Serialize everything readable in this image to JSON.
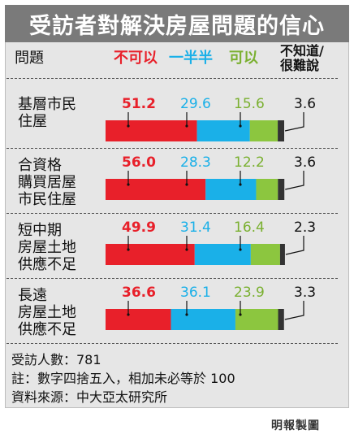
{
  "title": "受訪者對解決房屋問題的信心",
  "header": {
    "question": "問題",
    "cat_no": "不可以",
    "cat_half": "一半半",
    "cat_yes": "可以",
    "cat_na_line1": "不知道/",
    "cat_na_line2": "很難說"
  },
  "colors": {
    "no": "#e8202a",
    "half": "#1ab0e8",
    "yes": "#8cc63f",
    "na": "#333333",
    "no_text": "#e8202a",
    "half_text": "#1ab0e8",
    "yes_text": "#7ab030"
  },
  "chart_data": {
    "type": "bar",
    "stacked": true,
    "orientation": "horizontal",
    "title": "受訪者對解決房屋問題的信心",
    "categories": [
      "基層市民住屋",
      "合資格購買居屋市民住屋",
      "短中期房屋土地供應不足",
      "長遠房屋土地供應不足"
    ],
    "category_lines": [
      [
        "基層市民",
        "住屋"
      ],
      [
        "合資格",
        "購買居屋",
        "市民住屋"
      ],
      [
        "短中期",
        "房屋土地",
        "供應不足"
      ],
      [
        "長遠",
        "房屋土地",
        "供應不足"
      ]
    ],
    "series": [
      {
        "name": "不可以",
        "values": [
          51.2,
          56.0,
          49.9,
          36.6
        ]
      },
      {
        "name": "一半半",
        "values": [
          29.6,
          28.3,
          31.4,
          36.1
        ]
      },
      {
        "name": "可以",
        "values": [
          15.6,
          12.2,
          16.4,
          23.9
        ]
      },
      {
        "name": "不知道/很難說",
        "values": [
          3.6,
          3.6,
          2.3,
          3.3
        ]
      }
    ],
    "value_labels": [
      [
        "51.2",
        "29.6",
        "15.6",
        "3.6"
      ],
      [
        "56.0",
        "28.3",
        "12.2",
        "3.6"
      ],
      [
        "49.9",
        "31.4",
        "16.4",
        "2.3"
      ],
      [
        "36.6",
        "36.1",
        "23.9",
        "3.3"
      ]
    ]
  },
  "footer": {
    "respondents": "受訪人數：781",
    "note": "註：數字四捨五入，相加未必等於 100",
    "source": "資料來源：中大亞太研究所"
  },
  "credit": "明報製圖"
}
